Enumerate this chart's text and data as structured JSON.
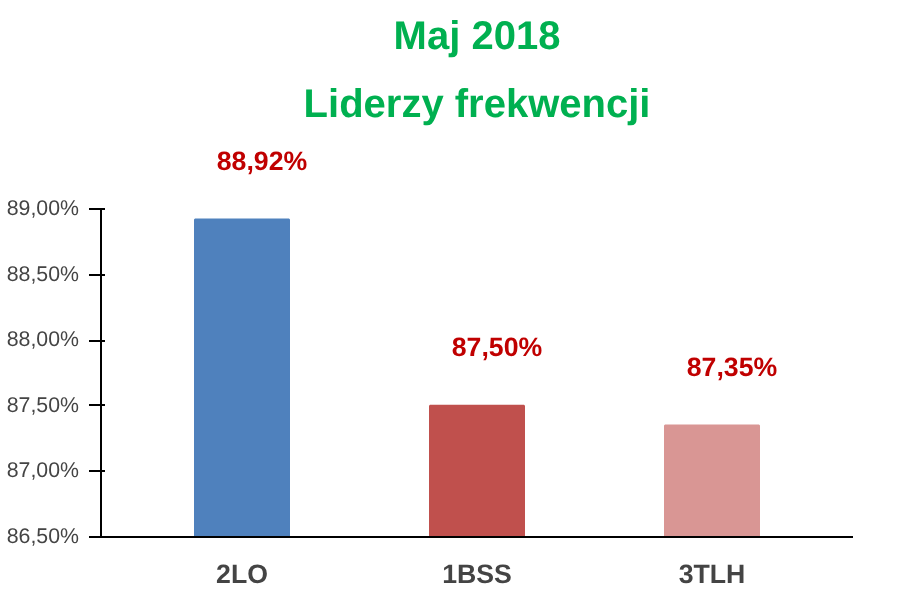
{
  "chart_data": {
    "type": "bar",
    "title": "Maj 2018",
    "subtitle": "Liderzy frekwencji",
    "categories": [
      "2LO",
      "1BSS",
      "3TLH"
    ],
    "values": [
      88.92,
      87.5,
      87.35
    ],
    "colors": [
      "#4f81bd",
      "#c0504d",
      "#d99694"
    ],
    "value_labels": [
      "88,92%",
      "87,50%",
      "87,35%"
    ],
    "ylim": [
      86.5,
      89.0
    ],
    "yticks": [
      {
        "value": 86.5,
        "label": "86,50%"
      },
      {
        "value": 87.0,
        "label": "87,00%"
      },
      {
        "value": 87.5,
        "label": "87,50%"
      },
      {
        "value": 88.0,
        "label": "88,00%"
      },
      {
        "value": 88.5,
        "label": "88,50%"
      },
      {
        "value": 89.0,
        "label": "89,00%"
      }
    ],
    "grid": false
  }
}
